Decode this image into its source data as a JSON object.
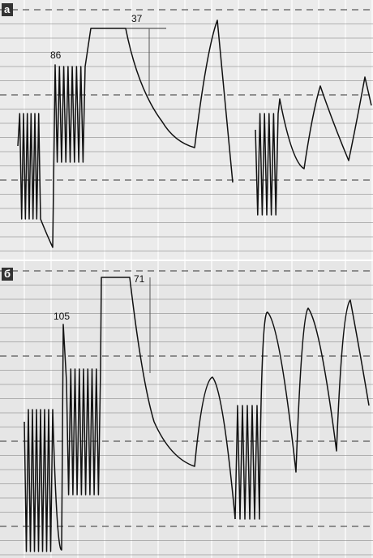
{
  "panels": [
    {
      "label": "а",
      "annotations": [
        86,
        37
      ]
    },
    {
      "label": "б",
      "annotations": [
        105,
        71
      ]
    }
  ]
}
